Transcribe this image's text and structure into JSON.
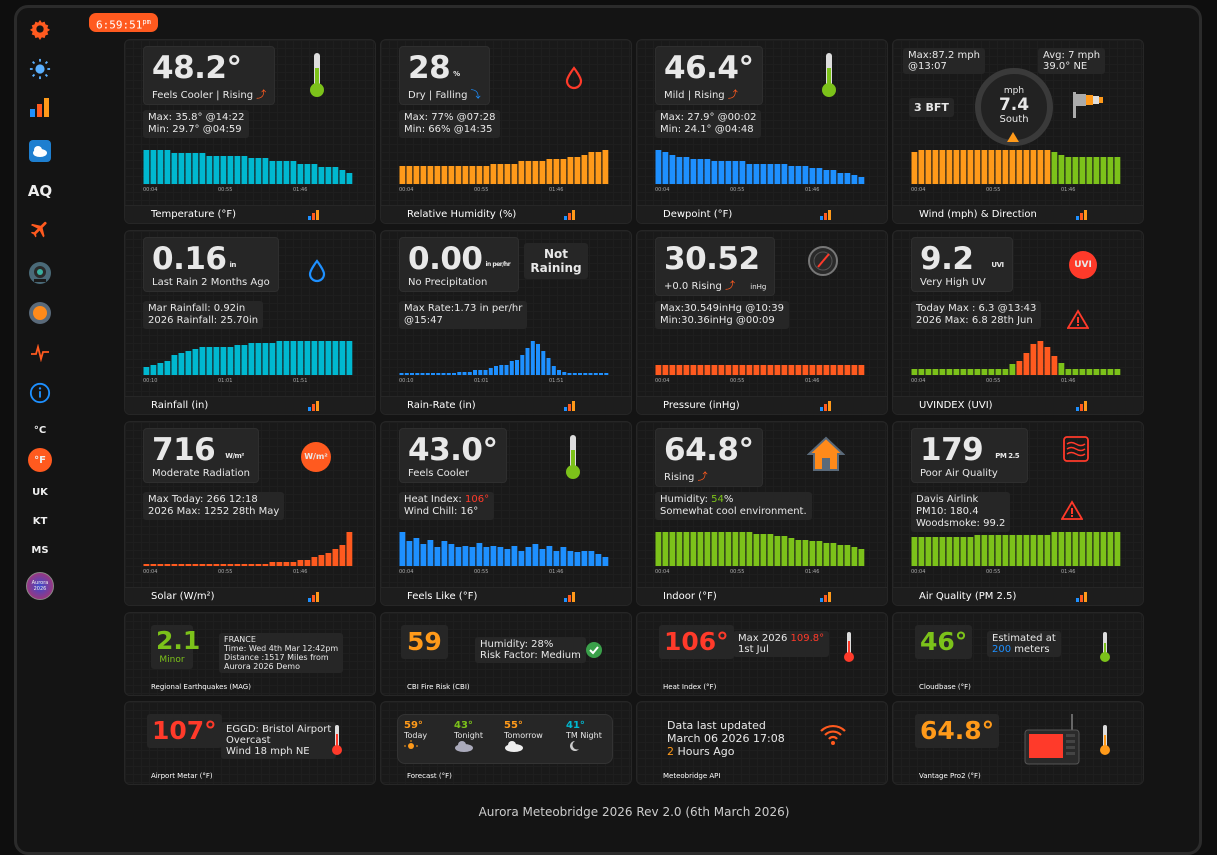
{
  "clock": {
    "time": "6:59:51",
    "ampm": "pm"
  },
  "sidebar": {
    "aq": "AQ",
    "c": "°C",
    "f": "°F",
    "uk": "UK",
    "kt": "KT",
    "ms": "MS",
    "logo1": "Aurora",
    "logo2": "2026"
  },
  "colors": {
    "orange": "#ff5a1f",
    "cyan": "#00b8d0",
    "amber": "#ff9a1a",
    "blue": "#1e90ff",
    "green": "#7cc21a",
    "red": "#ff3a2a"
  },
  "cards": {
    "temp": {
      "value": "48.2°",
      "sub": "Feels Cooler | Rising",
      "max": "Max: 35.8° @14:22",
      "min": "Min: 29.7° @04:59",
      "footer": "Temperature (°F)",
      "ticks": [
        "00:04",
        "00:55",
        "01:46"
      ]
    },
    "hum": {
      "value": "28",
      "unit": "%",
      "sub": "Dry | Falling",
      "max": "Max: 77% @07:28",
      "min": "Min: 66% @14:35",
      "footer": "Relative Humidity (%)",
      "ticks": [
        "00:04",
        "00:55",
        "01:46"
      ]
    },
    "dew": {
      "value": "46.4°",
      "sub": "Mild | Rising",
      "max": "Max: 27.9° @00:02",
      "min": "Min: 24.1° @04:48",
      "footer": "Dewpoint (°F)",
      "ticks": [
        "00:04",
        "00:55",
        "01:46"
      ]
    },
    "wind": {
      "max1": "Max:87.2 mph",
      "max2": "@13:07",
      "avg1": "Avg: 7 mph",
      "avg2": "39.0° NE",
      "bft": "3 BFT",
      "unit": "mph",
      "speed": "7.4",
      "dir": "South",
      "footer": "Wind (mph) & Direction",
      "ticks": [
        "00:04",
        "00:55",
        "01:46"
      ]
    },
    "rain": {
      "value": "0.16",
      "unit": "in",
      "sub": "Last Rain 2 Months Ago",
      "l1": "Mar Rainfall: 0.92in",
      "l2": "2026 Rainfall: 25.70in",
      "footer": "Rainfall (in)",
      "ticks": [
        "00:10",
        "01:01",
        "01:51"
      ]
    },
    "rate": {
      "value": "0.00",
      "unit": "in per/hr",
      "sub": "No Precipitation",
      "status": "Not Raining",
      "l1": "Max Rate:1.73 in per/hr",
      "l2": "@15:47",
      "footer": "Rain-Rate (in)",
      "ticks": [
        "00:10",
        "01:01",
        "01:51"
      ]
    },
    "pres": {
      "value": "30.52",
      "sub": "+0.0 Rising",
      "unit": "inHg",
      "l1": "Max:30.549inHg @10:39",
      "l2": "Min:30.36inHg @00:09",
      "footer": "Pressure (inHg)",
      "ticks": [
        "00:04",
        "00:55",
        "01:46"
      ]
    },
    "uv": {
      "value": "9.2",
      "unit": "UVI",
      "sub": "Very High UV",
      "badge": "UVI",
      "l1": "Today Max : 6.3 @13:43",
      "l2": "2026 Max: 6.8 28th Jun",
      "footer": "UVINDEX (UVI)",
      "ticks": [
        "00:04",
        "00:55",
        "01:46"
      ]
    },
    "solar": {
      "value": "716",
      "unit": "W/m²",
      "sub": "Moderate Radiation",
      "badge": "W/m²",
      "l1": "Max Today: 266 12:18",
      "l2": "2026 Max: 1252 28th May",
      "footer": "Solar (W/m²)",
      "ticks": [
        "00:04",
        "00:55",
        "01:46"
      ]
    },
    "feels": {
      "value": "43.0°",
      "sub": "Feels Cooler",
      "l1a": "Heat Index: ",
      "l1b": "106°",
      "l2": "Wind Chill: 16°",
      "footer": "Feels Like (°F)",
      "ticks": [
        "00:04",
        "00:55",
        "01:46"
      ]
    },
    "indoor": {
      "value": "64.8°",
      "sub": "Rising",
      "l1a": "Humidity: ",
      "l1b": "54",
      "l1c": "%",
      "l2": "Somewhat cool environment.",
      "footer": "Indoor (°F)",
      "ticks": [
        "00:04",
        "00:55",
        "01:46"
      ]
    },
    "aqi": {
      "value": "179",
      "unit": "PM 2.5",
      "sub": "Poor Air Quality",
      "l1": "Davis Airlink",
      "l2": "PM10: 180.4",
      "l3": "Woodsmoke: 99.2",
      "footer": "Air Quality (PM 2.5)",
      "ticks": [
        "00:04",
        "00:55",
        "01:46"
      ]
    },
    "eq": {
      "value": "2.1",
      "level": "Minor",
      "l1": "FRANCE",
      "l2": "Time: Wed 4th Mar 12:42pm",
      "l3": "Distance :1517 Miles from",
      "l4": "Aurora 2026 Demo",
      "footer": "Regional Earthquakes (MAG)"
    },
    "fire": {
      "value": "59",
      "l1": "Humidity: 28%",
      "l2": "Risk Factor: Medium",
      "footer": "CBI Fire Risk (CBI)"
    },
    "heat": {
      "value": "106°",
      "l1a": "Max 2026 ",
      "l1b": "109.8°",
      "l2": "1st Jul",
      "footer": "Heat Index (°F)"
    },
    "cloud": {
      "value": "46°",
      "l1": "Estimated at",
      "l2a": "200",
      "l2b": " meters",
      "footer": "Cloudbase (°F)"
    },
    "metar": {
      "value": "107°",
      "l1": "EGGD: Bristol Airport",
      "l2": "Overcast",
      "l3": "Wind 18 mph NE",
      "footer": "Airport Metar (°F)"
    },
    "forecast": {
      "footer": "Forecast (°F)",
      "items": [
        {
          "t": "59°",
          "l": "Today",
          "c": "#ff9a1a"
        },
        {
          "t": "43°",
          "l": "Tonight",
          "c": "#7cc21a"
        },
        {
          "t": "55°",
          "l": "Tomorrow",
          "c": "#ff9a1a"
        },
        {
          "t": "41°",
          "l": "TM Night",
          "c": "#00b8d0"
        }
      ]
    },
    "api": {
      "l1": "Data last updated",
      "l2": "March 06 2026 17:08",
      "l3a": "2",
      "l3b": " Hours Ago",
      "footer": "Meteobridge API"
    },
    "vp2": {
      "value": "64.8°",
      "footer": "Vantage Pro2 (°F)"
    }
  },
  "footer_text": "Aurora Meteobridge 2026 Rev 2.0 (6th March 2026)",
  "charts": {
    "temp": [
      12,
      12,
      12,
      12,
      11,
      11,
      11,
      11,
      11,
      10,
      10,
      10,
      10,
      10,
      10,
      9,
      9,
      9,
      8,
      8,
      8,
      8,
      7,
      7,
      7,
      6,
      6,
      6,
      5,
      4
    ],
    "hum": [
      8,
      8,
      8,
      8,
      8,
      8,
      8,
      8,
      8,
      8,
      8,
      8,
      8,
      9,
      9,
      9,
      9,
      10,
      10,
      10,
      10,
      11,
      11,
      11,
      12,
      12,
      13,
      14,
      14,
      15
    ],
    "dew": [
      15,
      14,
      13,
      12,
      12,
      11,
      11,
      11,
      10,
      10,
      10,
      10,
      10,
      9,
      9,
      9,
      9,
      9,
      9,
      8,
      8,
      8,
      7,
      7,
      6,
      6,
      5,
      5,
      4,
      3
    ],
    "wind": [
      14,
      15,
      15,
      15,
      15,
      15,
      15,
      15,
      15,
      15,
      15,
      15,
      15,
      15,
      15,
      15,
      15,
      15,
      15,
      15,
      14,
      13,
      12,
      12,
      12,
      12,
      12,
      12,
      12,
      12
    ],
    "rain": [
      4,
      5,
      6,
      7,
      10,
      11,
      12,
      13,
      14,
      14,
      14,
      14,
      14,
      15,
      15,
      16,
      16,
      16,
      16,
      17,
      17,
      17,
      17,
      17,
      17,
      17,
      17,
      17,
      17,
      17
    ],
    "rate": [
      1,
      1,
      1,
      1,
      1,
      1,
      1,
      1,
      1,
      1,
      1,
      2,
      2,
      2,
      3,
      3,
      3,
      4,
      5,
      6,
      6,
      8,
      9,
      12,
      16,
      20,
      18,
      14,
      10,
      5,
      3,
      2,
      1,
      1,
      1,
      1,
      1,
      1,
      1,
      1
    ],
    "pres": [
      8,
      8,
      8,
      8,
      8,
      8,
      8,
      8,
      8,
      8,
      8,
      8,
      8,
      8,
      8,
      8,
      8,
      8,
      8,
      8,
      8,
      8,
      8,
      8,
      8,
      8,
      8,
      8,
      8,
      8
    ],
    "uv": [
      4,
      4,
      4,
      4,
      4,
      4,
      4,
      4,
      4,
      4,
      4,
      4,
      4,
      4,
      7,
      9,
      14,
      20,
      22,
      18,
      12,
      8,
      4,
      4,
      4,
      4,
      4,
      4,
      4,
      4
    ],
    "solar": [
      1,
      1,
      1,
      1,
      1,
      1,
      1,
      1,
      1,
      1,
      1,
      1,
      1,
      1,
      1,
      1,
      1,
      1,
      2,
      2,
      2,
      2,
      3,
      3,
      4,
      5,
      6,
      8,
      10,
      16
    ],
    "feels": [
      22,
      16,
      18,
      14,
      17,
      12,
      16,
      14,
      12,
      13,
      12,
      15,
      12,
      13,
      12,
      11,
      13,
      10,
      12,
      14,
      11,
      13,
      10,
      12,
      10,
      9,
      10,
      10,
      8,
      6
    ],
    "indoor": [
      18,
      18,
      18,
      18,
      18,
      18,
      18,
      18,
      18,
      18,
      18,
      18,
      18,
      18,
      17,
      17,
      17,
      16,
      16,
      15,
      14,
      14,
      13,
      13,
      12,
      12,
      11,
      11,
      10,
      9
    ],
    "aqi": [
      11,
      11,
      11,
      11,
      11,
      11,
      11,
      11,
      11,
      12,
      12,
      12,
      12,
      12,
      12,
      12,
      12,
      12,
      12,
      12,
      13,
      13,
      13,
      13,
      13,
      13,
      13,
      13,
      13,
      13
    ]
  }
}
